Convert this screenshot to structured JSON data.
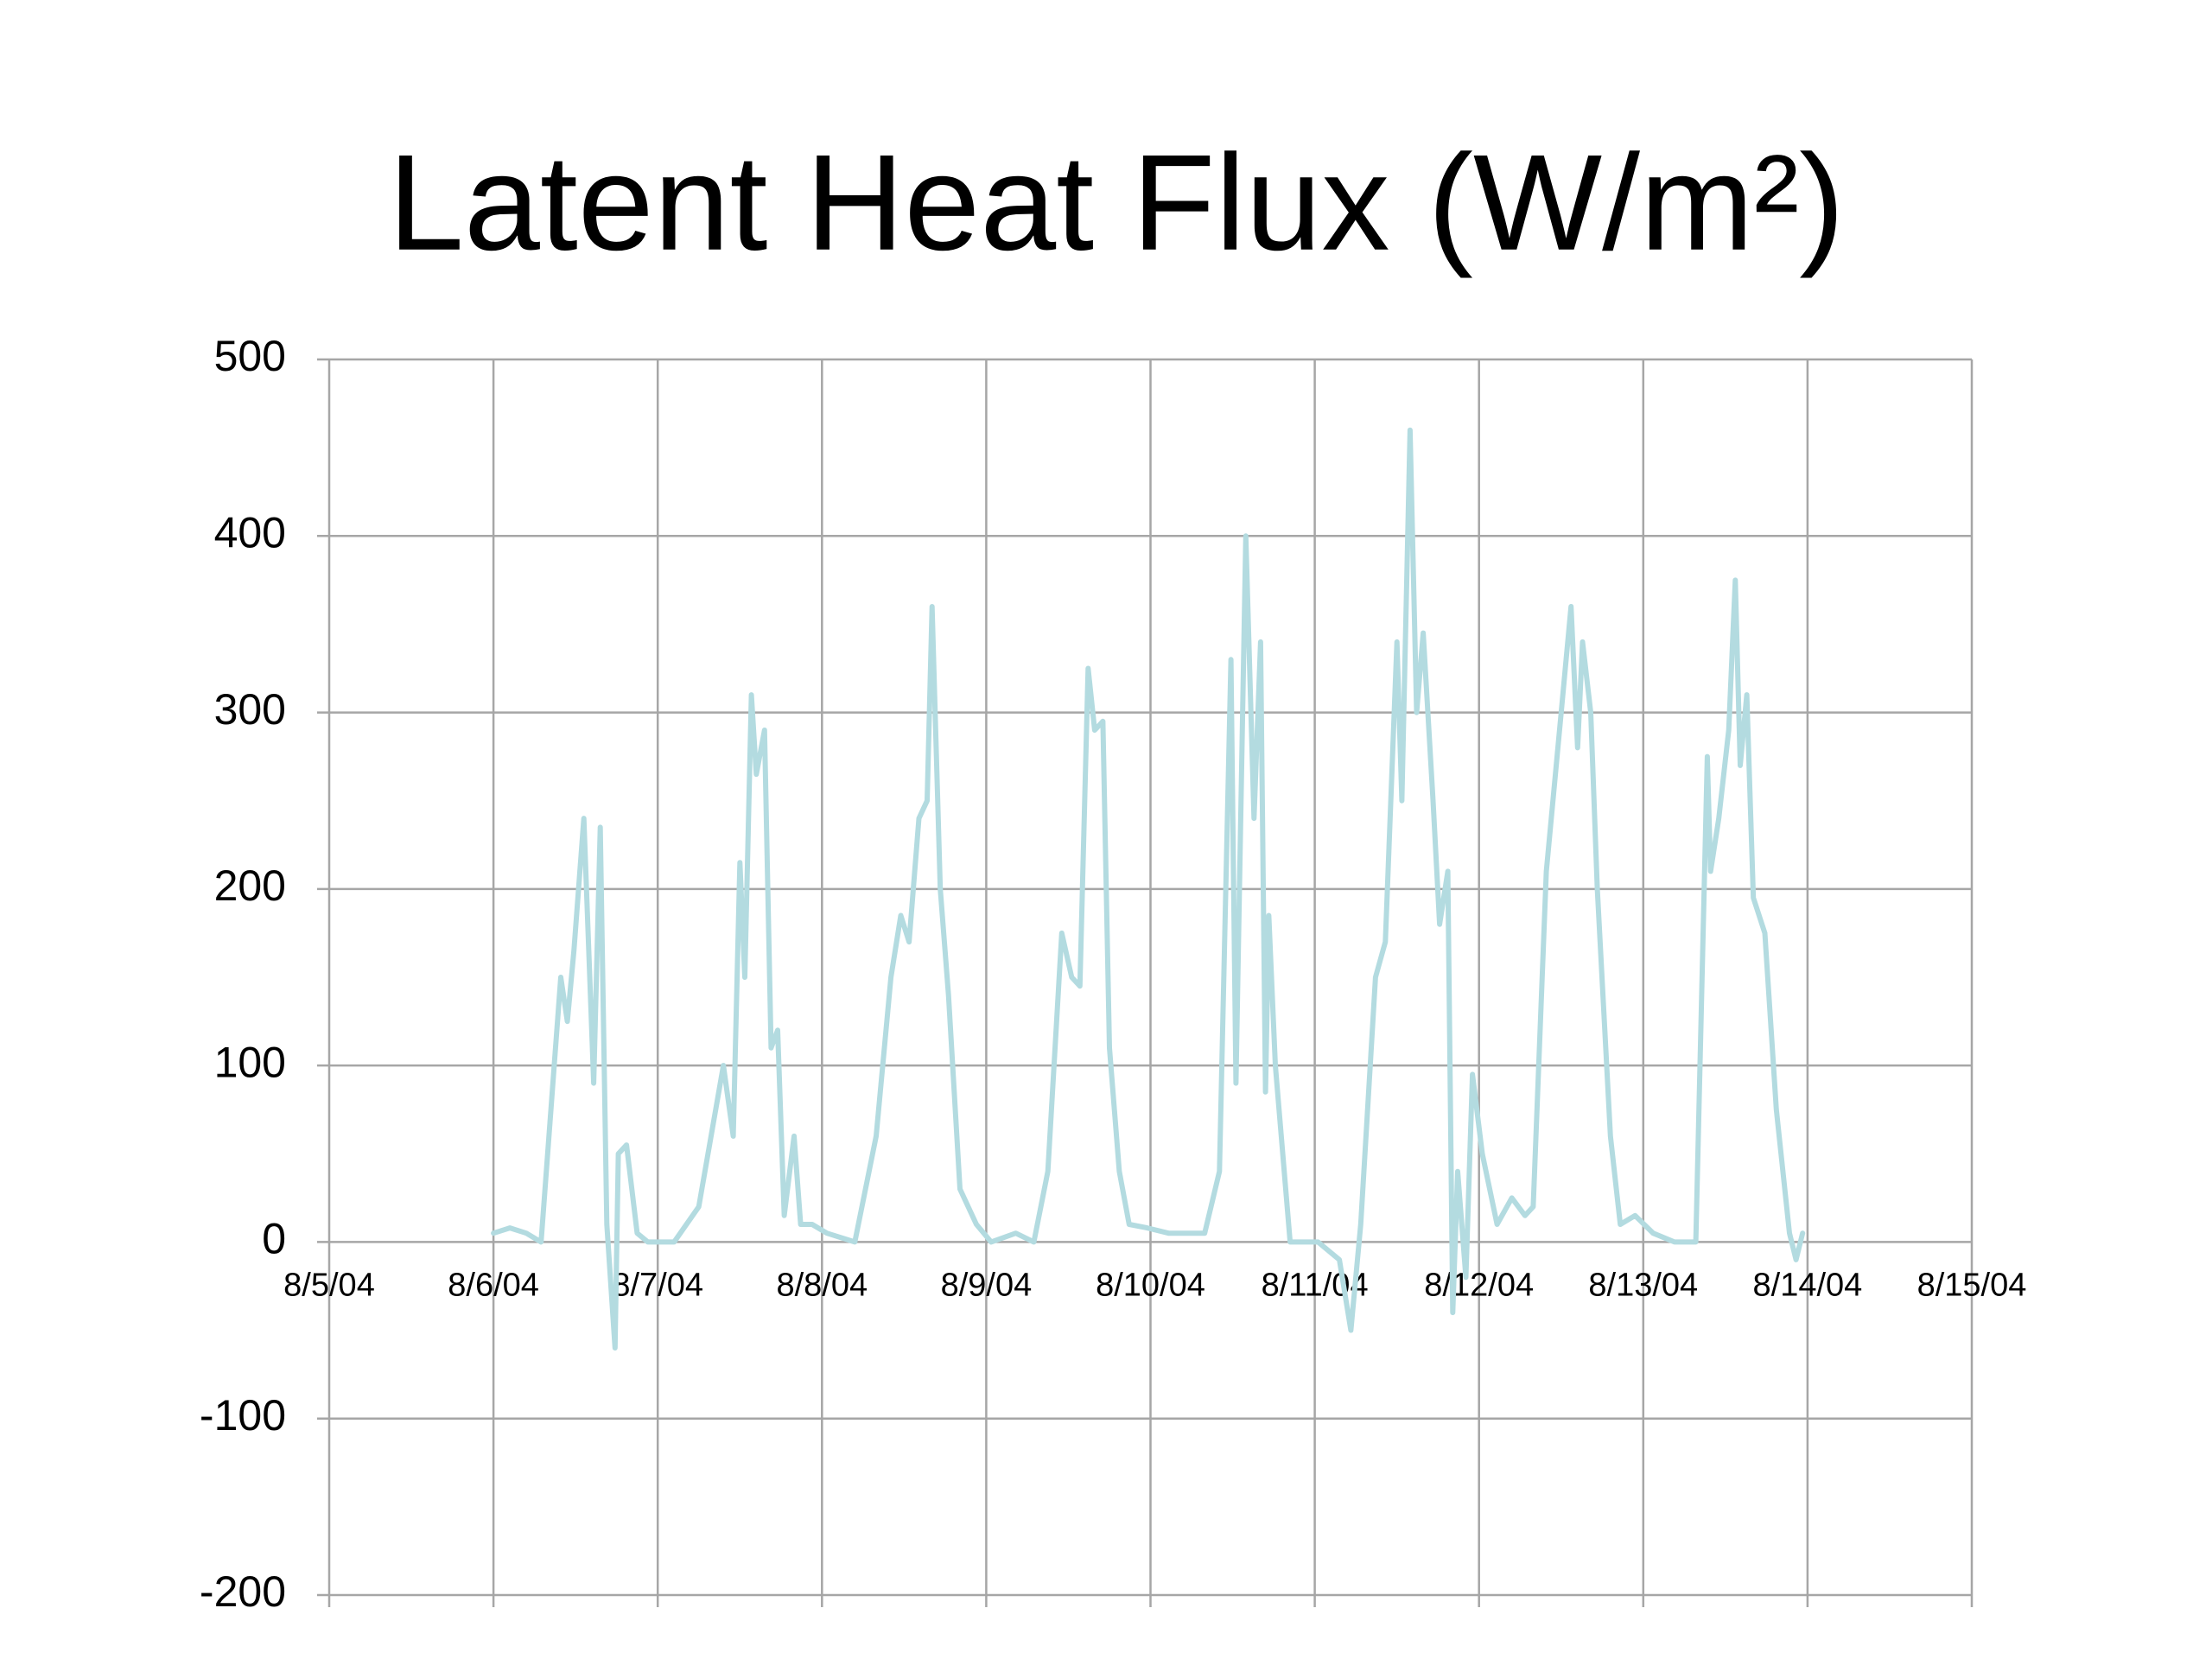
{
  "chart_data": {
    "type": "line",
    "title": "Latent Heat Flux (W/m²)",
    "color": "#b3dbe0",
    "grid": true,
    "xlim": [
      0,
      10
    ],
    "xticks": [
      {
        "value": 0,
        "label": "8/5/04"
      },
      {
        "value": 1,
        "label": "8/6/04"
      },
      {
        "value": 2,
        "label": "8/7/04"
      },
      {
        "value": 3,
        "label": "8/8/04"
      },
      {
        "value": 4,
        "label": "8/9/04"
      },
      {
        "value": 5,
        "label": "8/10/04"
      },
      {
        "value": 6,
        "label": "8/11/04"
      },
      {
        "value": 7,
        "label": "8/12/04"
      },
      {
        "value": 8,
        "label": "8/13/04"
      },
      {
        "value": 9,
        "label": "8/14/04"
      },
      {
        "value": 10,
        "label": "8/15/04"
      }
    ],
    "ylim": [
      -200,
      500
    ],
    "yticks": [
      -200,
      -100,
      0,
      100,
      200,
      300,
      400,
      500
    ],
    "x": [
      1.0,
      1.1,
      1.2,
      1.29,
      1.41,
      1.45,
      1.49,
      1.55,
      1.61,
      1.65,
      1.69,
      1.74,
      1.76,
      1.81,
      1.875,
      1.94,
      2.1,
      2.25,
      2.4,
      2.46,
      2.5,
      2.53,
      2.57,
      2.6,
      2.65,
      2.69,
      2.73,
      2.77,
      2.83,
      2.87,
      2.94,
      3.03,
      3.2,
      3.33,
      3.42,
      3.48,
      3.53,
      3.59,
      3.64,
      3.67,
      3.72,
      3.77,
      3.84,
      3.94,
      4.03,
      4.18,
      4.29,
      4.375,
      4.46,
      4.52,
      4.57,
      4.62,
      4.66,
      4.71,
      4.75,
      4.81,
      4.87,
      4.98,
      5.11,
      5.33,
      5.42,
      5.49,
      5.52,
      5.58,
      5.63,
      5.67,
      5.7,
      5.72,
      5.76,
      5.85,
      6.02,
      6.15,
      6.22,
      6.28,
      6.37,
      6.43,
      6.5,
      6.53,
      6.58,
      6.62,
      6.66,
      6.72,
      6.76,
      6.81,
      6.84,
      6.87,
      6.92,
      6.96,
      7.02,
      7.11,
      7.2,
      7.28,
      7.33,
      7.41,
      7.5,
      7.56,
      7.6,
      7.63,
      7.68,
      7.72,
      7.8,
      7.86,
      7.95,
      8.06,
      8.19,
      8.32,
      8.39,
      8.41,
      8.46,
      8.52,
      8.56,
      8.59,
      8.63,
      8.67,
      8.74,
      8.81,
      8.89,
      8.93,
      8.97
    ],
    "values": [
      5,
      8,
      5,
      0,
      150,
      125,
      165,
      240,
      90,
      235,
      10,
      -60,
      50,
      55,
      5,
      0,
      0,
      20,
      100,
      60,
      215,
      150,
      310,
      265,
      290,
      110,
      120,
      15,
      60,
      10,
      10,
      5,
      0,
      60,
      150,
      185,
      170,
      240,
      250,
      360,
      200,
      140,
      30,
      10,
      0,
      5,
      0,
      40,
      175,
      150,
      145,
      325,
      290,
      295,
      110,
      40,
      10,
      8,
      5,
      5,
      40,
      330,
      90,
      400,
      240,
      340,
      85,
      185,
      100,
      0,
      0,
      -10,
      -50,
      10,
      150,
      170,
      340,
      250,
      460,
      300,
      345,
      250,
      180,
      210,
      -40,
      40,
      -20,
      95,
      50,
      10,
      25,
      15,
      20,
      210,
      300,
      360,
      280,
      340,
      300,
      200,
      60,
      10,
      15,
      5,
      0,
      0,
      275,
      210,
      240,
      290,
      375,
      270,
      310,
      195,
      175,
      75,
      5,
      -10,
      5
    ]
  }
}
